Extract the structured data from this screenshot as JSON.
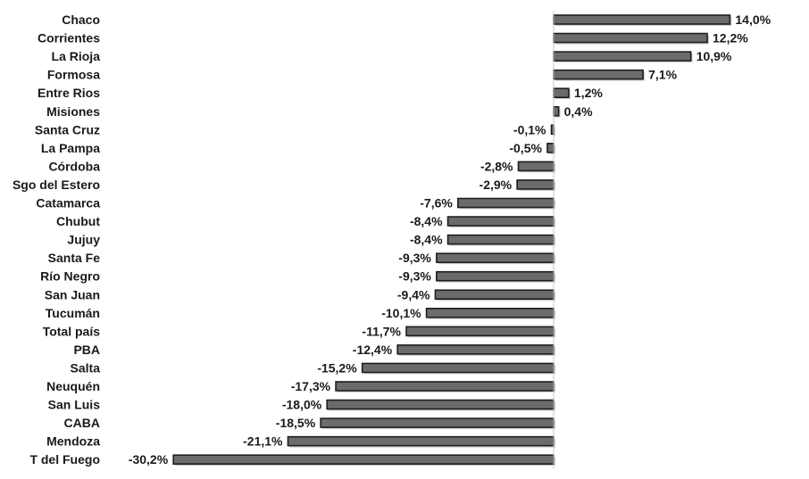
{
  "chart_data": {
    "type": "bar",
    "orientation": "horizontal",
    "categories": [
      "Chaco",
      "Corrientes",
      "La Rioja",
      "Formosa",
      "Entre Rios",
      "Misiones",
      "Santa Cruz",
      "La Pampa",
      "Córdoba",
      "Sgo del Estero",
      "Catamarca",
      "Chubut",
      "Jujuy",
      "Santa Fe",
      "Río Negro",
      "San Juan",
      "Tucumán",
      "Total país",
      "PBA",
      "Salta",
      "Neuquén",
      "San Luis",
      "CABA",
      "Mendoza",
      "T del Fuego"
    ],
    "values": [
      14.0,
      12.2,
      10.9,
      7.1,
      1.2,
      0.4,
      -0.1,
      -0.5,
      -2.8,
      -2.9,
      -7.6,
      -8.4,
      -8.4,
      -9.3,
      -9.3,
      -9.4,
      -10.1,
      -11.7,
      -12.4,
      -15.2,
      -17.3,
      -18.0,
      -18.5,
      -21.1,
      -30.2
    ],
    "value_labels": [
      "14,0%",
      "12,2%",
      "10,9%",
      "7,1%",
      "1,2%",
      "0,4%",
      "-0,1%",
      "-0,5%",
      "-2,8%",
      "-2,9%",
      "-7,6%",
      "-8,4%",
      "-8,4%",
      "-9,3%",
      "-9,3%",
      "-9,4%",
      "-10,1%",
      "-11,7%",
      "-12,4%",
      "-15,2%",
      "-17,3%",
      "-18,0%",
      "-18,5%",
      "-21,1%",
      "-30,2%"
    ],
    "title": "",
    "xlabel": "",
    "ylabel": "",
    "xlim": [
      -30.2,
      14.0
    ],
    "grid": false,
    "legend": "none",
    "colors": {
      "bar": "#6b6b6b",
      "bar_border": "#1e1e1e",
      "axis": "#c9c9c9",
      "text": "#1a1a1a"
    }
  }
}
